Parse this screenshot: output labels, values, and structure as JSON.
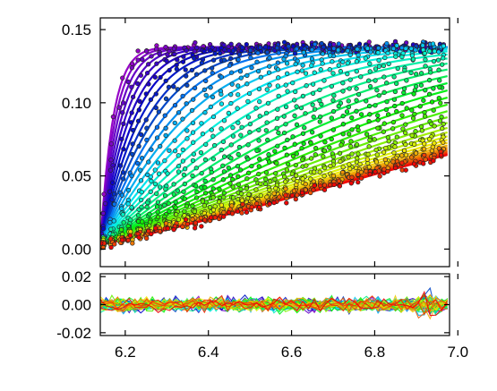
{
  "chart_data": [
    {
      "type": "scatter",
      "panel": "main",
      "description_series": "family of rising curves with scattered markers, colored violet to red",
      "xlim": [
        6.14,
        6.98
      ],
      "ylim": [
        -0.012,
        0.158
      ],
      "xticks": [
        6.2,
        6.4,
        6.6,
        6.8,
        7.0
      ],
      "yticks": [
        0.0,
        0.05,
        0.1,
        0.15
      ],
      "ytick_labels": [
        "0.00",
        "0.05",
        "0.10",
        "0.15"
      ],
      "series_count": 40,
      "plateau": 0.138,
      "baseline": 0.0,
      "x_start": 6.14,
      "x_end": 6.975,
      "grid": false
    },
    {
      "type": "line",
      "panel": "residuals",
      "xlim": [
        6.14,
        6.98
      ],
      "ylim": [
        -0.022,
        0.022
      ],
      "xticks": [
        6.2,
        6.4,
        6.6,
        6.8,
        7.0
      ],
      "xtick_labels": [
        "6.2",
        "6.4",
        "6.6",
        "6.8",
        "7.0"
      ],
      "yticks": [
        -0.02,
        0.0,
        0.02
      ],
      "ytick_labels": [
        "-0.02",
        "0.00",
        "0.02"
      ],
      "zero_line": 0.0,
      "series_count": 40,
      "noise_amplitude": 0.006,
      "grid": false
    }
  ],
  "colors": {
    "frame": "#000000",
    "zero_line": "#b0b0b0",
    "marker_edge": "#222222"
  }
}
